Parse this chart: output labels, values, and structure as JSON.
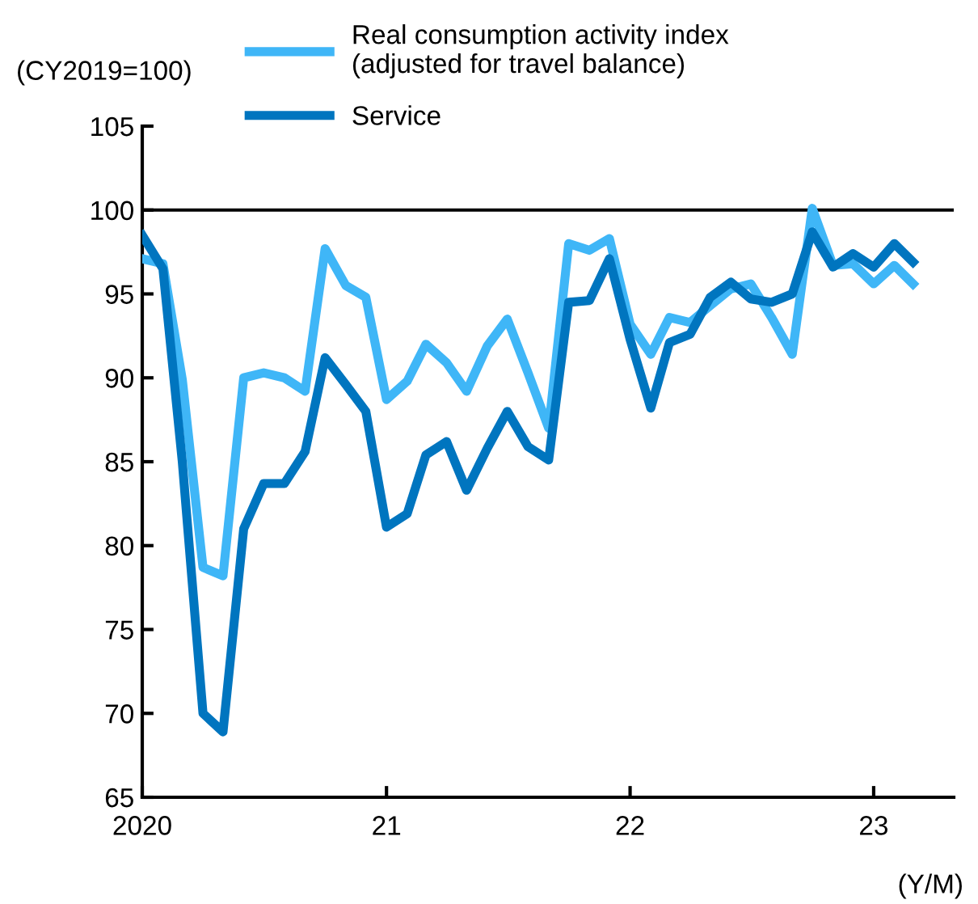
{
  "chart_data": {
    "type": "line",
    "ylabel": "(CY2019=100)",
    "xlabel": "(Y/M)",
    "x": [
      "2020-01",
      "2020-02",
      "2020-03",
      "2020-04",
      "2020-05",
      "2020-06",
      "2020-07",
      "2020-08",
      "2020-09",
      "2020-10",
      "2020-11",
      "2020-12",
      "2021-01",
      "2021-02",
      "2021-03",
      "2021-04",
      "2021-05",
      "2021-06",
      "2021-07",
      "2021-08",
      "2021-09",
      "2021-10",
      "2021-11",
      "2021-12",
      "2022-01",
      "2022-02",
      "2022-03",
      "2022-04",
      "2022-05",
      "2022-06",
      "2022-07",
      "2022-08",
      "2022-09",
      "2022-10",
      "2022-11",
      "2022-12",
      "2023-01",
      "2023-02",
      "2023-03"
    ],
    "series": [
      {
        "name": "Real consumption activity index\n(adjusted for travel balance)",
        "color": "#3fb6f7",
        "values": [
          97.1,
          96.8,
          89.9,
          78.7,
          78.2,
          90.0,
          90.3,
          90.0,
          89.2,
          97.7,
          95.5,
          94.8,
          88.7,
          89.8,
          92.0,
          90.9,
          89.2,
          91.9,
          93.5,
          90.3,
          87.0,
          98.0,
          97.6,
          98.3,
          93.2,
          91.4,
          93.6,
          93.3,
          94.3,
          95.3,
          95.6,
          93.6,
          91.4,
          100.1,
          96.7,
          96.8,
          95.6,
          96.7,
          95.6
        ]
      },
      {
        "name": "Service",
        "color": "#0075bf",
        "values": [
          98.5,
          96.5,
          85.0,
          70.0,
          68.9,
          81.0,
          83.7,
          83.7,
          85.6,
          91.2,
          89.6,
          88.0,
          81.1,
          81.9,
          85.4,
          86.2,
          83.3,
          85.8,
          88.0,
          85.9,
          85.1,
          94.5,
          94.6,
          97.1,
          92.3,
          88.2,
          92.1,
          92.6,
          94.8,
          95.7,
          94.7,
          94.5,
          95.0,
          98.7,
          96.6,
          97.4,
          96.6,
          98.0,
          96.9
        ]
      }
    ],
    "xlim": [
      "2020-01",
      "2023-05"
    ],
    "xticks": [
      {
        "value": "2020-01",
        "label": "2020"
      },
      {
        "value": "2021-01",
        "label": "21"
      },
      {
        "value": "2022-01",
        "label": "22"
      },
      {
        "value": "2023-01",
        "label": "23"
      }
    ],
    "ylim": [
      65,
      105
    ],
    "yticks": [
      65,
      70,
      75,
      80,
      85,
      90,
      95,
      100,
      105
    ],
    "ref_lines": [
      {
        "axis": "y",
        "value": 100,
        "color": "#000000"
      }
    ],
    "grid": false,
    "legend": "top",
    "marker": "none",
    "line_style": "solid"
  }
}
